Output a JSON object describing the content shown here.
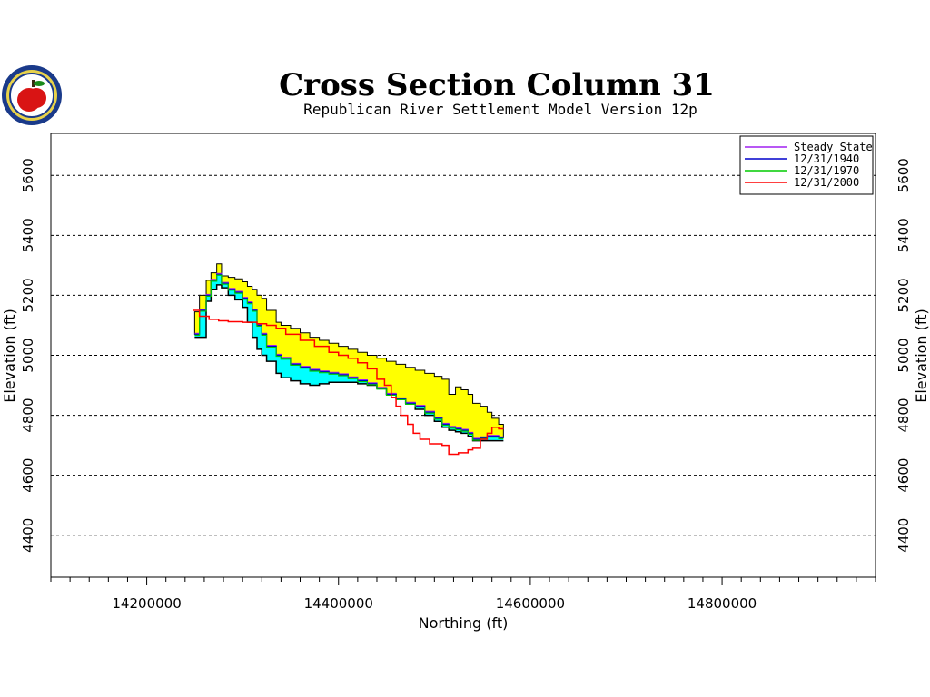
{
  "chart_data": {
    "type": "line",
    "title": "Cross Section Column 31",
    "subtitle": "Republican River Settlement Model Version 12p",
    "xlabel": "Northing (ft)",
    "ylabel": "Elevation (ft)",
    "xlim": [
      14100000,
      14960000
    ],
    "ylim": [
      4260000,
      5740000
    ],
    "y_ticks": [
      "4400",
      "4600",
      "4800",
      "5000",
      "5200",
      "5400",
      "5600"
    ],
    "x_ticks": [
      "14200000",
      "14400000",
      "14600000",
      "14800000"
    ],
    "grid": true,
    "legend_position": "top-right",
    "series": [
      {
        "name": "Steady State",
        "color": "#a020f0"
      },
      {
        "name": "12/31/1940",
        "color": "#0000cc"
      },
      {
        "name": "12/31/1970",
        "color": "#00cc00"
      },
      {
        "name": "12/31/2000",
        "color": "#ff0000"
      }
    ],
    "layer_top": [
      [
        14250000,
        5145
      ],
      [
        14255000,
        5200
      ],
      [
        14262000,
        5250
      ],
      [
        14267000,
        5275
      ],
      [
        14273000,
        5305
      ],
      [
        14278000,
        5265
      ],
      [
        14285000,
        5260
      ],
      [
        14292000,
        5255
      ],
      [
        14300000,
        5245
      ],
      [
        14305000,
        5230
      ],
      [
        14310000,
        5220
      ],
      [
        14315000,
        5200
      ],
      [
        14320000,
        5190
      ],
      [
        14325000,
        5150
      ],
      [
        14335000,
        5110
      ],
      [
        14340000,
        5100
      ],
      [
        14350000,
        5090
      ],
      [
        14360000,
        5075
      ],
      [
        14370000,
        5060
      ],
      [
        14380000,
        5050
      ],
      [
        14390000,
        5040
      ],
      [
        14400000,
        5030
      ],
      [
        14410000,
        5020
      ],
      [
        14420000,
        5010
      ],
      [
        14430000,
        5000
      ],
      [
        14440000,
        4990
      ],
      [
        14450000,
        4980
      ],
      [
        14460000,
        4970
      ],
      [
        14470000,
        4960
      ],
      [
        14480000,
        4950
      ],
      [
        14490000,
        4940
      ],
      [
        14500000,
        4930
      ],
      [
        14508000,
        4920
      ],
      [
        14515000,
        4870
      ],
      [
        14522000,
        4895
      ],
      [
        14528000,
        4885
      ],
      [
        14535000,
        4870
      ],
      [
        14540000,
        4840
      ],
      [
        14548000,
        4830
      ],
      [
        14555000,
        4810
      ],
      [
        14560000,
        4790
      ],
      [
        14567000,
        4770
      ]
    ],
    "layer_mid": [
      [
        14250000,
        5070
      ],
      [
        14255000,
        5150
      ],
      [
        14262000,
        5200
      ],
      [
        14267000,
        5250
      ],
      [
        14273000,
        5270
      ],
      [
        14278000,
        5240
      ],
      [
        14285000,
        5220
      ],
      [
        14292000,
        5210
      ],
      [
        14300000,
        5190
      ],
      [
        14305000,
        5175
      ],
      [
        14310000,
        5150
      ],
      [
        14315000,
        5100
      ],
      [
        14320000,
        5070
      ],
      [
        14325000,
        5030
      ],
      [
        14335000,
        5000
      ],
      [
        14340000,
        4990
      ],
      [
        14350000,
        4970
      ],
      [
        14360000,
        4960
      ],
      [
        14370000,
        4950
      ],
      [
        14380000,
        4945
      ],
      [
        14390000,
        4940
      ],
      [
        14400000,
        4935
      ],
      [
        14410000,
        4925
      ],
      [
        14420000,
        4915
      ],
      [
        14430000,
        4905
      ],
      [
        14440000,
        4890
      ],
      [
        14450000,
        4870
      ],
      [
        14460000,
        4855
      ],
      [
        14470000,
        4840
      ],
      [
        14480000,
        4830
      ],
      [
        14490000,
        4810
      ],
      [
        14500000,
        4790
      ],
      [
        14508000,
        4770
      ],
      [
        14515000,
        4760
      ],
      [
        14522000,
        4755
      ],
      [
        14528000,
        4750
      ],
      [
        14535000,
        4740
      ],
      [
        14540000,
        4720
      ],
      [
        14548000,
        4725
      ],
      [
        14555000,
        4730
      ],
      [
        14560000,
        4730
      ],
      [
        14567000,
        4725
      ]
    ],
    "layer_bot": [
      [
        14250000,
        5060
      ],
      [
        14255000,
        5060
      ],
      [
        14262000,
        5180
      ],
      [
        14267000,
        5220
      ],
      [
        14273000,
        5235
      ],
      [
        14278000,
        5225
      ],
      [
        14285000,
        5200
      ],
      [
        14292000,
        5185
      ],
      [
        14300000,
        5160
      ],
      [
        14305000,
        5110
      ],
      [
        14310000,
        5060
      ],
      [
        14315000,
        5020
      ],
      [
        14320000,
        5000
      ],
      [
        14325000,
        4980
      ],
      [
        14335000,
        4940
      ],
      [
        14340000,
        4925
      ],
      [
        14350000,
        4915
      ],
      [
        14360000,
        4905
      ],
      [
        14370000,
        4900
      ],
      [
        14380000,
        4905
      ],
      [
        14390000,
        4910
      ],
      [
        14400000,
        4910
      ],
      [
        14410000,
        4910
      ],
      [
        14420000,
        4905
      ],
      [
        14430000,
        4900
      ],
      [
        14440000,
        4890
      ],
      [
        14450000,
        4870
      ],
      [
        14460000,
        4855
      ],
      [
        14470000,
        4840
      ],
      [
        14480000,
        4820
      ],
      [
        14490000,
        4800
      ],
      [
        14500000,
        4780
      ],
      [
        14508000,
        4760
      ],
      [
        14515000,
        4750
      ],
      [
        14522000,
        4745
      ],
      [
        14528000,
        4740
      ],
      [
        14535000,
        4730
      ],
      [
        14540000,
        4715
      ],
      [
        14548000,
        4715
      ],
      [
        14555000,
        4715
      ],
      [
        14560000,
        4715
      ],
      [
        14567000,
        4715
      ]
    ],
    "head_2000": [
      [
        14248000,
        5150
      ],
      [
        14255000,
        5130
      ],
      [
        14265000,
        5120
      ],
      [
        14275000,
        5115
      ],
      [
        14285000,
        5112
      ],
      [
        14300000,
        5110
      ],
      [
        14315000,
        5105
      ],
      [
        14325000,
        5100
      ],
      [
        14335000,
        5090
      ],
      [
        14345000,
        5070
      ],
      [
        14360000,
        5050
      ],
      [
        14375000,
        5030
      ],
      [
        14390000,
        5010
      ],
      [
        14400000,
        5000
      ],
      [
        14410000,
        4990
      ],
      [
        14420000,
        4975
      ],
      [
        14430000,
        4955
      ],
      [
        14440000,
        4920
      ],
      [
        14448000,
        4900
      ],
      [
        14455000,
        4860
      ],
      [
        14460000,
        4830
      ],
      [
        14465000,
        4800
      ],
      [
        14472000,
        4770
      ],
      [
        14478000,
        4740
      ],
      [
        14485000,
        4720
      ],
      [
        14495000,
        4705
      ],
      [
        14508000,
        4700
      ],
      [
        14515000,
        4670
      ],
      [
        14525000,
        4675
      ],
      [
        14535000,
        4685
      ],
      [
        14540000,
        4690
      ],
      [
        14548000,
        4720
      ],
      [
        14555000,
        4740
      ],
      [
        14560000,
        4760
      ],
      [
        14567000,
        4755
      ]
    ]
  }
}
